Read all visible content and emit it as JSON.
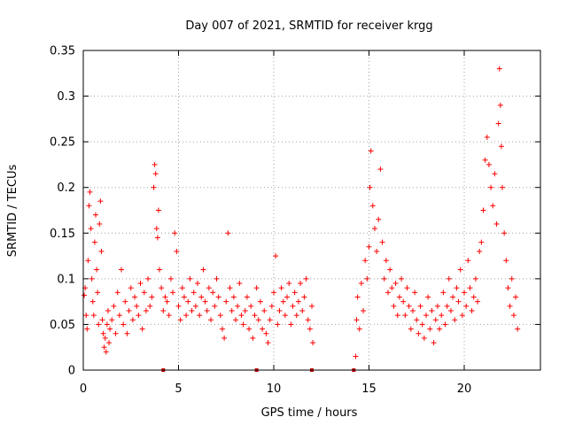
{
  "chart_data": {
    "type": "scatter",
    "title": "Day 007 of 2021, SRMTID for receiver krgg",
    "xlabel": "GPS time / hours",
    "ylabel": "SRMTID / TECUs",
    "xlim": [
      0,
      24
    ],
    "ylim": [
      0,
      0.35
    ],
    "x_ticks": [
      0,
      5,
      10,
      15,
      20
    ],
    "y_ticks": [
      0,
      0.05,
      0.1,
      0.15,
      0.2,
      0.25,
      0.3,
      0.35
    ],
    "x_tick_labels": [
      "0",
      "5",
      "10",
      "15",
      "20"
    ],
    "y_tick_labels": [
      "0",
      "0.05",
      "0.1",
      "0.15",
      "0.2",
      "0.25",
      "0.3",
      "0.35"
    ],
    "grid": true,
    "marker": "+",
    "color": "#ff0000",
    "data_gap_hours": [
      12.3,
      14.2
    ],
    "series": [
      {
        "name": "SRMTID",
        "points": [
          [
            0.05,
            0.082
          ],
          [
            0.1,
            0.09
          ],
          [
            0.15,
            0.06
          ],
          [
            0.2,
            0.045
          ],
          [
            0.25,
            0.12
          ],
          [
            0.3,
            0.18
          ],
          [
            0.35,
            0.195
          ],
          [
            0.4,
            0.155
          ],
          [
            0.45,
            0.1
          ],
          [
            0.5,
            0.075
          ],
          [
            0.55,
            0.06
          ],
          [
            0.6,
            0.14
          ],
          [
            0.65,
            0.17
          ],
          [
            0.7,
            0.11
          ],
          [
            0.75,
            0.085
          ],
          [
            0.8,
            0.05
          ],
          [
            0.85,
            0.16
          ],
          [
            0.9,
            0.185
          ],
          [
            0.95,
            0.13
          ],
          [
            1.0,
            0.055
          ],
          [
            1.05,
            0.04
          ],
          [
            1.1,
            0.025
          ],
          [
            1.15,
            0.035
          ],
          [
            1.2,
            0.02
          ],
          [
            1.25,
            0.05
          ],
          [
            1.3,
            0.065
          ],
          [
            1.35,
            0.03
          ],
          [
            1.4,
            0.045
          ],
          [
            1.5,
            0.055
          ],
          [
            1.6,
            0.07
          ],
          [
            1.7,
            0.04
          ],
          [
            1.8,
            0.085
          ],
          [
            1.9,
            0.06
          ],
          [
            2.0,
            0.11
          ],
          [
            2.1,
            0.05
          ],
          [
            2.2,
            0.075
          ],
          [
            2.3,
            0.04
          ],
          [
            2.4,
            0.065
          ],
          [
            2.5,
            0.09
          ],
          [
            2.6,
            0.055
          ],
          [
            2.7,
            0.08
          ],
          [
            2.8,
            0.07
          ],
          [
            2.9,
            0.06
          ],
          [
            3.0,
            0.095
          ],
          [
            3.1,
            0.045
          ],
          [
            3.2,
            0.085
          ],
          [
            3.3,
            0.065
          ],
          [
            3.4,
            0.1
          ],
          [
            3.5,
            0.07
          ],
          [
            3.6,
            0.08
          ],
          [
            3.7,
            0.2
          ],
          [
            3.75,
            0.225
          ],
          [
            3.8,
            0.215
          ],
          [
            3.85,
            0.155
          ],
          [
            3.9,
            0.145
          ],
          [
            3.95,
            0.175
          ],
          [
            4.0,
            0.11
          ],
          [
            4.1,
            0.09
          ],
          [
            4.2,
            0.065
          ],
          [
            4.3,
            0.08
          ],
          [
            4.4,
            0.075
          ],
          [
            4.5,
            0.06
          ],
          [
            4.6,
            0.1
          ],
          [
            4.7,
            0.085
          ],
          [
            4.8,
            0.15
          ],
          [
            4.9,
            0.13
          ],
          [
            5.0,
            0.07
          ],
          [
            5.1,
            0.055
          ],
          [
            5.2,
            0.09
          ],
          [
            5.3,
            0.08
          ],
          [
            5.4,
            0.06
          ],
          [
            5.5,
            0.075
          ],
          [
            5.6,
            0.1
          ],
          [
            5.7,
            0.065
          ],
          [
            5.8,
            0.085
          ],
          [
            5.9,
            0.07
          ],
          [
            6.0,
            0.095
          ],
          [
            6.1,
            0.06
          ],
          [
            6.2,
            0.08
          ],
          [
            6.3,
            0.11
          ],
          [
            6.4,
            0.075
          ],
          [
            6.5,
            0.065
          ],
          [
            6.6,
            0.09
          ],
          [
            6.7,
            0.055
          ],
          [
            6.8,
            0.085
          ],
          [
            6.9,
            0.07
          ],
          [
            7.0,
            0.1
          ],
          [
            7.1,
            0.08
          ],
          [
            7.2,
            0.06
          ],
          [
            7.3,
            0.045
          ],
          [
            7.4,
            0.035
          ],
          [
            7.5,
            0.075
          ],
          [
            7.6,
            0.15
          ],
          [
            7.7,
            0.09
          ],
          [
            7.8,
            0.065
          ],
          [
            7.9,
            0.08
          ],
          [
            8.0,
            0.055
          ],
          [
            8.1,
            0.07
          ],
          [
            8.2,
            0.095
          ],
          [
            8.3,
            0.06
          ],
          [
            8.4,
            0.05
          ],
          [
            8.5,
            0.065
          ],
          [
            8.6,
            0.08
          ],
          [
            8.7,
            0.045
          ],
          [
            8.8,
            0.07
          ],
          [
            8.9,
            0.035
          ],
          [
            9.0,
            0.06
          ],
          [
            9.1,
            0.09
          ],
          [
            9.2,
            0.055
          ],
          [
            9.3,
            0.075
          ],
          [
            9.4,
            0.045
          ],
          [
            9.5,
            0.065
          ],
          [
            9.6,
            0.04
          ],
          [
            9.7,
            0.03
          ],
          [
            9.8,
            0.055
          ],
          [
            9.9,
            0.07
          ],
          [
            10.0,
            0.085
          ],
          [
            10.1,
            0.125
          ],
          [
            10.2,
            0.05
          ],
          [
            10.3,
            0.065
          ],
          [
            10.4,
            0.09
          ],
          [
            10.5,
            0.075
          ],
          [
            10.6,
            0.06
          ],
          [
            10.7,
            0.08
          ],
          [
            10.8,
            0.095
          ],
          [
            10.9,
            0.05
          ],
          [
            11.0,
            0.07
          ],
          [
            11.1,
            0.085
          ],
          [
            11.2,
            0.06
          ],
          [
            11.3,
            0.075
          ],
          [
            11.4,
            0.095
          ],
          [
            11.5,
            0.065
          ],
          [
            11.6,
            0.08
          ],
          [
            11.7,
            0.1
          ],
          [
            11.8,
            0.055
          ],
          [
            11.9,
            0.045
          ],
          [
            12.0,
            0.07
          ],
          [
            12.05,
            0.03
          ],
          [
            14.3,
            0.015
          ],
          [
            14.35,
            0.055
          ],
          [
            14.4,
            0.08
          ],
          [
            14.5,
            0.045
          ],
          [
            14.6,
            0.095
          ],
          [
            14.7,
            0.065
          ],
          [
            14.8,
            0.12
          ],
          [
            14.9,
            0.1
          ],
          [
            15.0,
            0.135
          ],
          [
            15.05,
            0.2
          ],
          [
            15.1,
            0.24
          ],
          [
            15.2,
            0.18
          ],
          [
            15.3,
            0.155
          ],
          [
            15.4,
            0.13
          ],
          [
            15.5,
            0.165
          ],
          [
            15.6,
            0.22
          ],
          [
            15.7,
            0.14
          ],
          [
            15.8,
            0.1
          ],
          [
            15.9,
            0.12
          ],
          [
            16.0,
            0.085
          ],
          [
            16.1,
            0.11
          ],
          [
            16.2,
            0.09
          ],
          [
            16.3,
            0.07
          ],
          [
            16.4,
            0.095
          ],
          [
            16.5,
            0.06
          ],
          [
            16.6,
            0.08
          ],
          [
            16.7,
            0.1
          ],
          [
            16.8,
            0.075
          ],
          [
            16.9,
            0.06
          ],
          [
            17.0,
            0.09
          ],
          [
            17.1,
            0.07
          ],
          [
            17.2,
            0.045
          ],
          [
            17.3,
            0.065
          ],
          [
            17.4,
            0.085
          ],
          [
            17.5,
            0.055
          ],
          [
            17.6,
            0.04
          ],
          [
            17.7,
            0.07
          ],
          [
            17.8,
            0.05
          ],
          [
            17.9,
            0.035
          ],
          [
            18.0,
            0.06
          ],
          [
            18.1,
            0.08
          ],
          [
            18.2,
            0.045
          ],
          [
            18.3,
            0.065
          ],
          [
            18.4,
            0.03
          ],
          [
            18.5,
            0.055
          ],
          [
            18.6,
            0.07
          ],
          [
            18.7,
            0.045
          ],
          [
            18.8,
            0.06
          ],
          [
            18.9,
            0.085
          ],
          [
            19.0,
            0.05
          ],
          [
            19.1,
            0.07
          ],
          [
            19.2,
            0.1
          ],
          [
            19.3,
            0.065
          ],
          [
            19.4,
            0.08
          ],
          [
            19.5,
            0.055
          ],
          [
            19.6,
            0.09
          ],
          [
            19.7,
            0.075
          ],
          [
            19.8,
            0.11
          ],
          [
            19.9,
            0.06
          ],
          [
            20.0,
            0.085
          ],
          [
            20.1,
            0.07
          ],
          [
            20.2,
            0.12
          ],
          [
            20.3,
            0.09
          ],
          [
            20.4,
            0.065
          ],
          [
            20.5,
            0.08
          ],
          [
            20.6,
            0.1
          ],
          [
            20.7,
            0.075
          ],
          [
            20.8,
            0.13
          ],
          [
            20.9,
            0.14
          ],
          [
            21.0,
            0.175
          ],
          [
            21.1,
            0.23
          ],
          [
            21.2,
            0.255
          ],
          [
            21.3,
            0.225
          ],
          [
            21.4,
            0.2
          ],
          [
            21.5,
            0.18
          ],
          [
            21.6,
            0.215
          ],
          [
            21.7,
            0.16
          ],
          [
            21.8,
            0.27
          ],
          [
            21.85,
            0.33
          ],
          [
            21.9,
            0.29
          ],
          [
            21.95,
            0.245
          ],
          [
            22.0,
            0.2
          ],
          [
            22.1,
            0.15
          ],
          [
            22.2,
            0.12
          ],
          [
            22.3,
            0.09
          ],
          [
            22.4,
            0.07
          ],
          [
            22.5,
            0.1
          ],
          [
            22.6,
            0.06
          ],
          [
            22.7,
            0.08
          ],
          [
            22.8,
            0.045
          ]
        ]
      }
    ],
    "zero_markers_hours": [
      4.2,
      9.1,
      12.0,
      14.2
    ]
  }
}
